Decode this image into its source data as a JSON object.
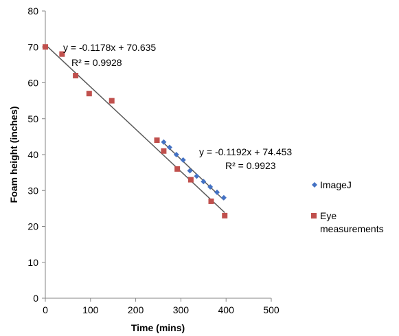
{
  "chart_data": {
    "type": "scatter",
    "title": "",
    "xlabel": "Time (mins)",
    "ylabel": "Foam height (inches)",
    "xlim": [
      0,
      500
    ],
    "ylim": [
      0,
      80
    ],
    "xticks": [
      0,
      100,
      200,
      300,
      400,
      500
    ],
    "yticks": [
      0,
      10,
      20,
      30,
      40,
      50,
      60,
      70,
      80
    ],
    "grid": false,
    "legend_position": "right",
    "series": [
      {
        "name": "ImageJ",
        "marker": "diamond",
        "color": "#4472C4",
        "x": [
          262,
          275,
          290,
          305,
          320,
          335,
          350,
          365,
          380,
          395
        ],
        "y": [
          43.5,
          42,
          40,
          38.5,
          35.5,
          34,
          32.5,
          31,
          29.5,
          28
        ],
        "trendline": {
          "slope": -0.1192,
          "intercept": 74.453,
          "x_range": [
            262,
            395
          ],
          "equation": "y = -0.1192x + 74.453",
          "r2": "R² = 0.9923"
        }
      },
      {
        "name": "Eye measurements",
        "marker": "square",
        "color": "#C0504D",
        "x": [
          0,
          37,
          67,
          97,
          147,
          247,
          262,
          292,
          322,
          367,
          397
        ],
        "y": [
          70,
          68,
          62,
          57,
          55,
          44,
          41,
          36,
          33,
          27,
          23
        ],
        "trendline": {
          "slope": -0.1178,
          "intercept": 70.635,
          "x_range": [
            0,
            397
          ],
          "equation": "y = -0.1178x + 70.635",
          "r2": "R² = 0.9928"
        }
      }
    ],
    "trendline_color": "#595959",
    "legend": {
      "entries": [
        {
          "label": "ImageJ"
        },
        {
          "label": "Eye measurements"
        }
      ]
    }
  }
}
